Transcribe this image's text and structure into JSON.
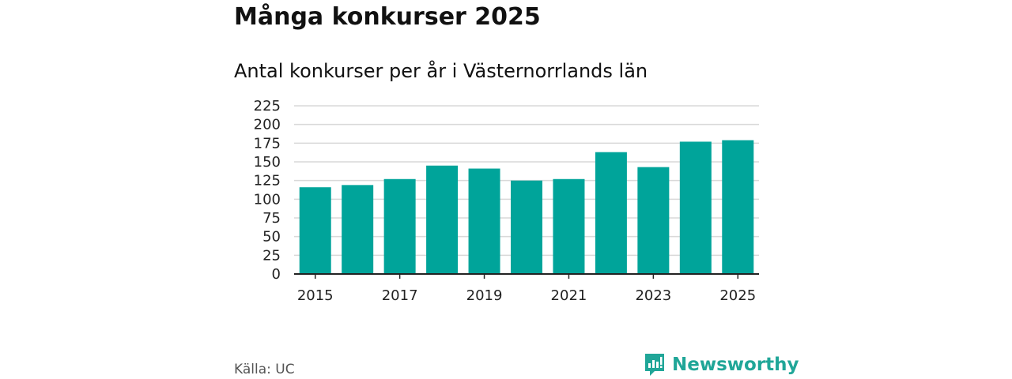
{
  "header": {
    "title": "Många konkurser 2025",
    "subtitle": "Antal konkurser per år i Västernorrlands län"
  },
  "footer": {
    "source": "Källa: UC",
    "brand_name": "Newsworthy",
    "brand_icon": "newsworthy-logo-icon"
  },
  "colors": {
    "bar": "#00a49a",
    "grid": "#d9d9d9",
    "axis": "#222222",
    "brand": "#20a698"
  },
  "chart_data": {
    "type": "bar",
    "title": "Antal konkurser per år i Västernorrlands län",
    "xlabel": "",
    "ylabel": "",
    "categories": [
      "2015",
      "2016",
      "2017",
      "2018",
      "2019",
      "2020",
      "2021",
      "2022",
      "2023",
      "2024",
      "2025"
    ],
    "values": [
      116,
      119,
      127,
      145,
      141,
      125,
      127,
      163,
      143,
      177,
      179
    ],
    "ylim": [
      0,
      225
    ],
    "yticks": [
      0,
      25,
      50,
      75,
      100,
      125,
      150,
      175,
      200,
      225
    ],
    "xtick_labels": [
      "2015",
      "2017",
      "2019",
      "2021",
      "2023",
      "2025"
    ],
    "grid": true,
    "legend": "none"
  }
}
